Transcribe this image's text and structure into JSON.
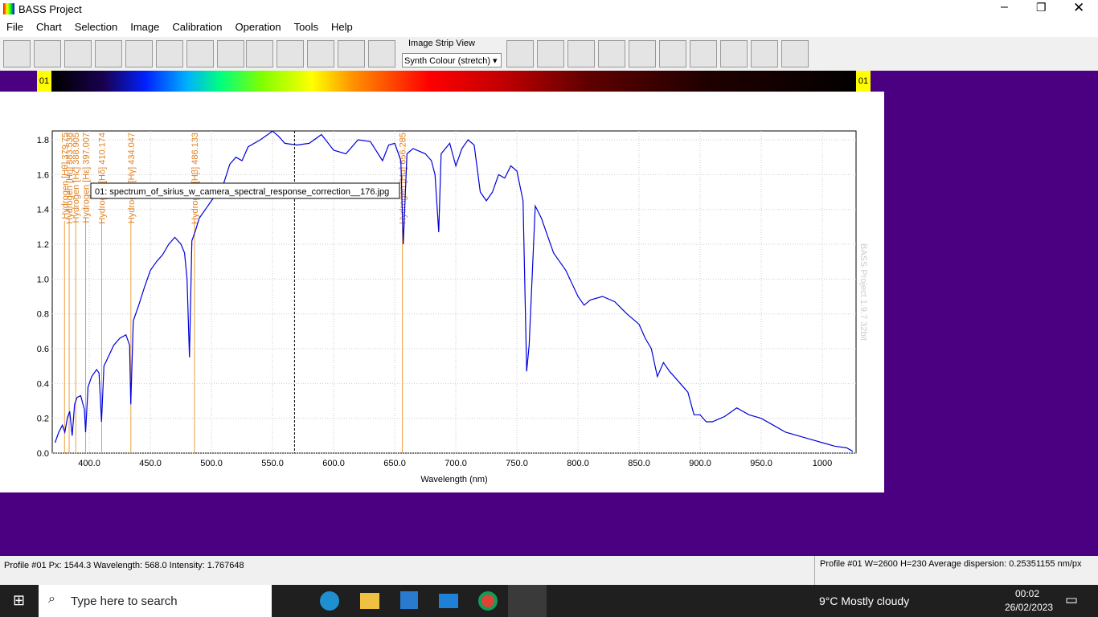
{
  "window": {
    "title": "BASS Project"
  },
  "menu": [
    "File",
    "Chart",
    "Selection",
    "Image",
    "Calibration",
    "Operation",
    "Tools",
    "Help"
  ],
  "toolbar": {
    "strip_label": "Image Strip View",
    "strip_mode": "Synth Colour (stretch)"
  },
  "strip": {
    "left": "01",
    "right": "01"
  },
  "chart_data": {
    "type": "line",
    "xlabel": "Wavelength (nm)",
    "watermark": "BASS Project 1.9.7 32bit",
    "xlim": [
      369.7,
      1027.6
    ],
    "ylim": [
      0,
      1.851
    ],
    "xticks": [
      {
        "value": 400,
        "label": "400.0"
      },
      {
        "value": 450,
        "label": "450.0"
      },
      {
        "value": 500,
        "label": "500.0"
      },
      {
        "value": 550,
        "label": "550.0"
      },
      {
        "value": 600,
        "label": "600.0"
      },
      {
        "value": 650,
        "label": "650.0"
      },
      {
        "value": 700,
        "label": "700.0"
      },
      {
        "value": 750,
        "label": "750.0"
      },
      {
        "value": 800,
        "label": "800.0"
      },
      {
        "value": 850,
        "label": "850.0"
      },
      {
        "value": 900,
        "label": "900.0"
      },
      {
        "value": 950,
        "label": "950.0"
      },
      {
        "value": 1000,
        "label": "1000"
      }
    ],
    "yticks": [
      {
        "value": 0,
        "label": "0.0"
      },
      {
        "value": 0.2,
        "label": "0.2"
      },
      {
        "value": 0.4,
        "label": "0.4"
      },
      {
        "value": 0.6,
        "label": "0.6"
      },
      {
        "value": 0.8,
        "label": "0.8"
      },
      {
        "value": 1.0,
        "label": "1.0"
      },
      {
        "value": 1.2,
        "label": "1.2"
      },
      {
        "value": 1.4,
        "label": "1.4"
      },
      {
        "value": 1.6,
        "label": "1.6"
      },
      {
        "value": 1.8,
        "label": "1.8"
      }
    ],
    "grid": true,
    "cursor_x": 568.0,
    "annotations": [
      {
        "x": 379.75,
        "label": "Hydrogen [Hθ] 379.75"
      },
      {
        "x": 383.538,
        "label": "Hydrogen [Hη] 383.538"
      },
      {
        "x": 388.905,
        "label": "Hydrogen [Hζ] 388.905"
      },
      {
        "x": 397.007,
        "label": "Hydrogen [Hε] 397.007"
      },
      {
        "x": 410.174,
        "label": "Hydrogen [Hδ] 410.174"
      },
      {
        "x": 434.047,
        "label": "Hydrogen [Hγ] 434.047"
      },
      {
        "x": 486.133,
        "label": "Hydrogen [Hβ] 486.133"
      },
      {
        "x": 656.285,
        "label": "Hydrogen [Hα] 656.285"
      }
    ],
    "series": [
      {
        "name": "01: spectrum_of_sirius_w_camera_spectral_response_correction__176.jpg",
        "color": "#0000dd",
        "x": [
          372,
          375,
          378,
          380,
          382,
          384,
          386,
          388,
          390,
          393,
          396,
          397,
          399,
          402,
          406,
          408,
          410,
          412,
          416,
          420,
          425,
          430,
          433,
          434,
          436,
          440,
          445,
          450,
          455,
          460,
          465,
          470,
          475,
          478,
          480,
          482,
          484,
          487,
          490,
          495,
          500,
          505,
          510,
          515,
          520,
          525,
          530,
          540,
          550,
          555,
          560,
          570,
          580,
          590,
          600,
          610,
          620,
          630,
          640,
          645,
          650,
          655,
          657,
          660,
          665,
          675,
          680,
          683,
          686,
          688,
          695,
          700,
          705,
          710,
          715,
          720,
          725,
          730,
          735,
          740,
          745,
          750,
          755,
          758,
          760,
          765,
          770,
          780,
          785,
          790,
          800,
          805,
          810,
          820,
          830,
          840,
          845,
          850,
          855,
          860,
          865,
          870,
          875,
          880,
          890,
          895,
          900,
          905,
          910,
          920,
          930,
          940,
          950,
          960,
          970,
          980,
          990,
          1000,
          1010,
          1020,
          1025
        ],
        "values": [
          0.06,
          0.12,
          0.16,
          0.12,
          0.2,
          0.24,
          0.1,
          0.28,
          0.32,
          0.33,
          0.25,
          0.12,
          0.38,
          0.44,
          0.48,
          0.46,
          0.18,
          0.5,
          0.56,
          0.62,
          0.66,
          0.68,
          0.62,
          0.28,
          0.76,
          0.84,
          0.95,
          1.05,
          1.1,
          1.14,
          1.2,
          1.24,
          1.2,
          1.15,
          1.0,
          0.55,
          1.22,
          1.28,
          1.35,
          1.4,
          1.45,
          1.5,
          1.55,
          1.66,
          1.7,
          1.68,
          1.76,
          1.8,
          1.85,
          1.82,
          1.78,
          1.77,
          1.78,
          1.83,
          1.74,
          1.72,
          1.8,
          1.79,
          1.68,
          1.77,
          1.78,
          1.68,
          1.2,
          1.72,
          1.75,
          1.72,
          1.68,
          1.6,
          1.27,
          1.72,
          1.78,
          1.65,
          1.75,
          1.8,
          1.77,
          1.5,
          1.45,
          1.5,
          1.6,
          1.58,
          1.65,
          1.62,
          1.45,
          0.47,
          0.62,
          1.42,
          1.35,
          1.15,
          1.1,
          1.05,
          0.9,
          0.85,
          0.88,
          0.9,
          0.87,
          0.8,
          0.77,
          0.74,
          0.66,
          0.6,
          0.44,
          0.52,
          0.47,
          0.43,
          0.35,
          0.22,
          0.22,
          0.18,
          0.18,
          0.21,
          0.26,
          0.22,
          0.2,
          0.16,
          0.12,
          0.1,
          0.08,
          0.06,
          0.04,
          0.03,
          0.01
        ]
      }
    ]
  },
  "status": {
    "left": "Profile #01  Px: 1544.3  Wavelength: 568.0  Intensity:  1.767648",
    "right": "Profile #01 W=2600 H=230  Average dispersion: 0.25351155 nm/px"
  },
  "taskbar": {
    "search": "Type here to search",
    "weather": "9°C  Mostly cloudy",
    "time": "00:02",
    "date": "26/02/2023"
  }
}
